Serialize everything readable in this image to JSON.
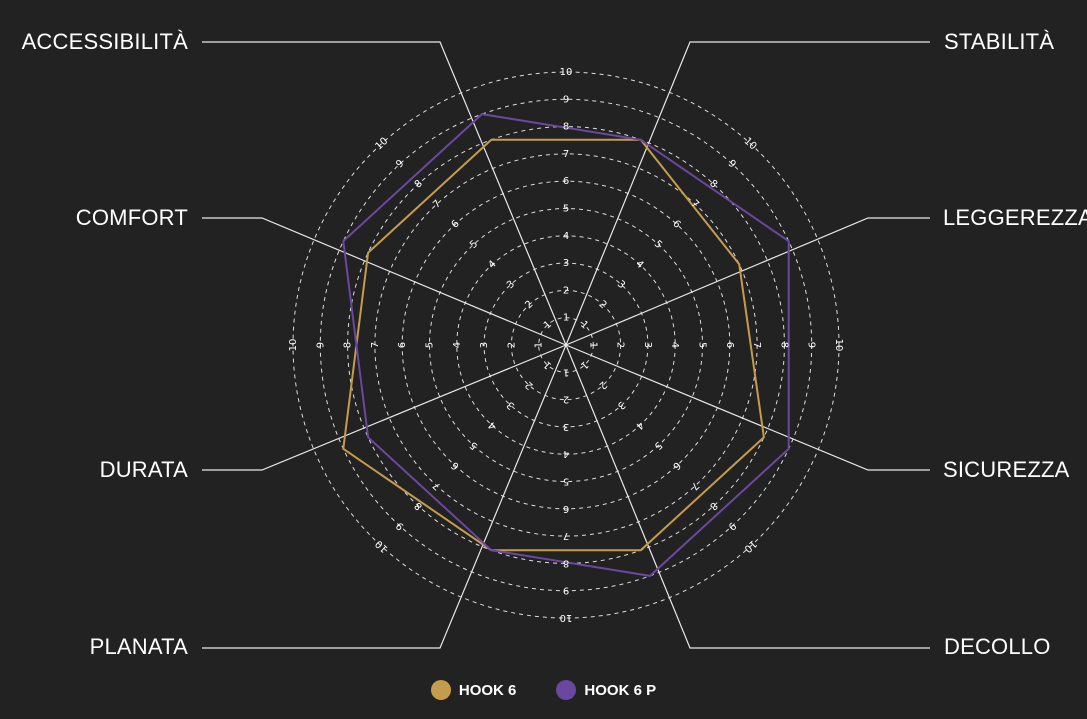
{
  "chart_data": {
    "type": "radar",
    "axes": [
      "STABILITÀ",
      "LEGGEREZZA",
      "SICUREZZA",
      "DECOLLO",
      "PLANATA",
      "DURATA",
      "COMFORT",
      "ACCESSIBILITÀ"
    ],
    "range": [
      0,
      10
    ],
    "ticks": [
      "1",
      "2",
      "3",
      "4",
      "5",
      "6",
      "7",
      "8",
      "9",
      "10"
    ],
    "grid": true,
    "legend_position": "bottom",
    "series": [
      {
        "name": "HOOK 6",
        "color": "#c59c4c",
        "values": [
          8,
          7,
          8,
          8,
          8,
          9,
          8,
          8
        ]
      },
      {
        "name": "HOOK 6 P",
        "color": "#6a48a0",
        "values": [
          8,
          9,
          9,
          9,
          8,
          8,
          9,
          9
        ]
      }
    ]
  }
}
